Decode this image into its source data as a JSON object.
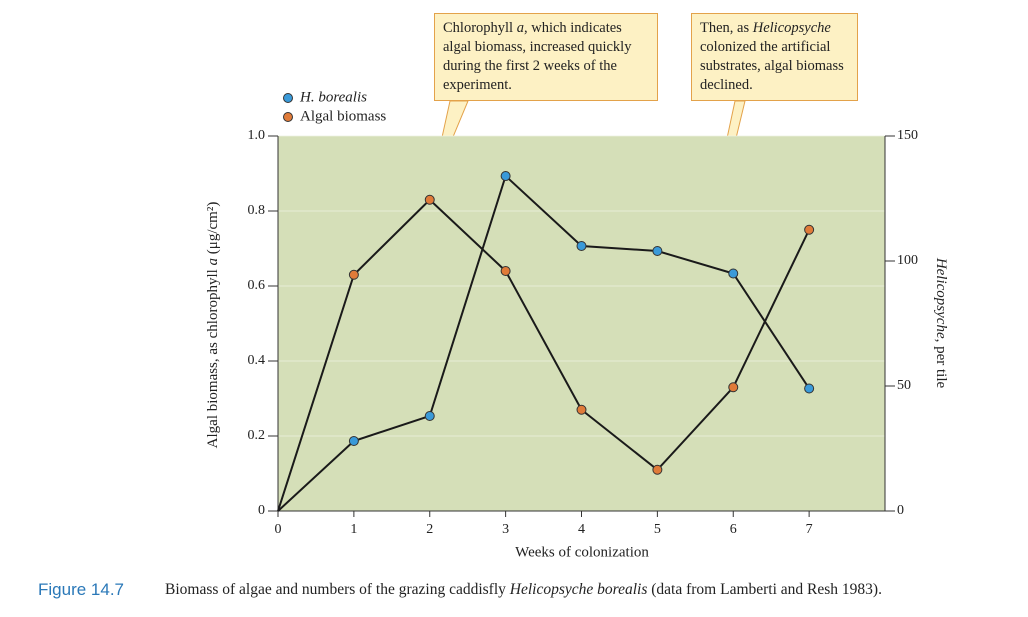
{
  "chart_data": {
    "type": "line",
    "x": [
      0,
      1,
      2,
      3,
      4,
      5,
      6,
      7
    ],
    "xlim": [
      0,
      8
    ],
    "xticks": [
      0,
      1,
      2,
      3,
      4,
      5,
      6,
      7
    ],
    "ylim": [
      0,
      1
    ],
    "yticks": [
      0,
      0.2,
      0.4,
      0.6,
      0.8,
      {
        "value": 1,
        "label": "1.0"
      }
    ],
    "y2lim": [
      0,
      150
    ],
    "y2ticks": [
      0,
      50,
      100,
      150
    ],
    "xlabel": "Weeks of colonization",
    "ylabel": [
      {
        "text": "Algal biomass, as chlorophyll "
      },
      {
        "text": "a",
        "italic": true
      },
      {
        "text": " (μg/cm²)"
      }
    ],
    "y2label": [
      {
        "text": "Helicopsyche",
        "italic": true
      },
      {
        "text": ", per tile"
      }
    ],
    "grid": true,
    "background": "#d5dfb8",
    "series": [
      {
        "name": "H. borealis",
        "italic": true,
        "color": "#3a9ad9",
        "axis": "y2",
        "values": [
          0,
          28,
          38,
          134,
          106,
          104,
          95,
          49
        ]
      },
      {
        "name": "Algal biomass",
        "color": "#e07b39",
        "values": [
          0,
          0.63,
          0.83,
          0.64,
          0.27,
          0.11,
          0.33,
          0.75
        ]
      }
    ],
    "annotations": [
      {
        "parts": [
          {
            "text": "Chlorophyll "
          },
          {
            "text": "a",
            "italic": true
          },
          {
            "text": ", which indicates algal biomass, increased quickly during the first 2 weeks of the experiment."
          }
        ]
      },
      {
        "parts": [
          {
            "text": "Then, as "
          },
          {
            "text": "Helicopsyche",
            "italic": true
          },
          {
            "text": " colonized the artificial substrates, algal biomass declined."
          }
        ]
      }
    ],
    "caption": {
      "label": "Figure 14.7",
      "parts": [
        {
          "text": "Biomass of algae and numbers of the grazing caddisfly "
        },
        {
          "text": "Helicopsyche borealis",
          "italic": true
        },
        {
          "text": " (data from Lamberti and Resh 1983)."
        }
      ]
    }
  }
}
